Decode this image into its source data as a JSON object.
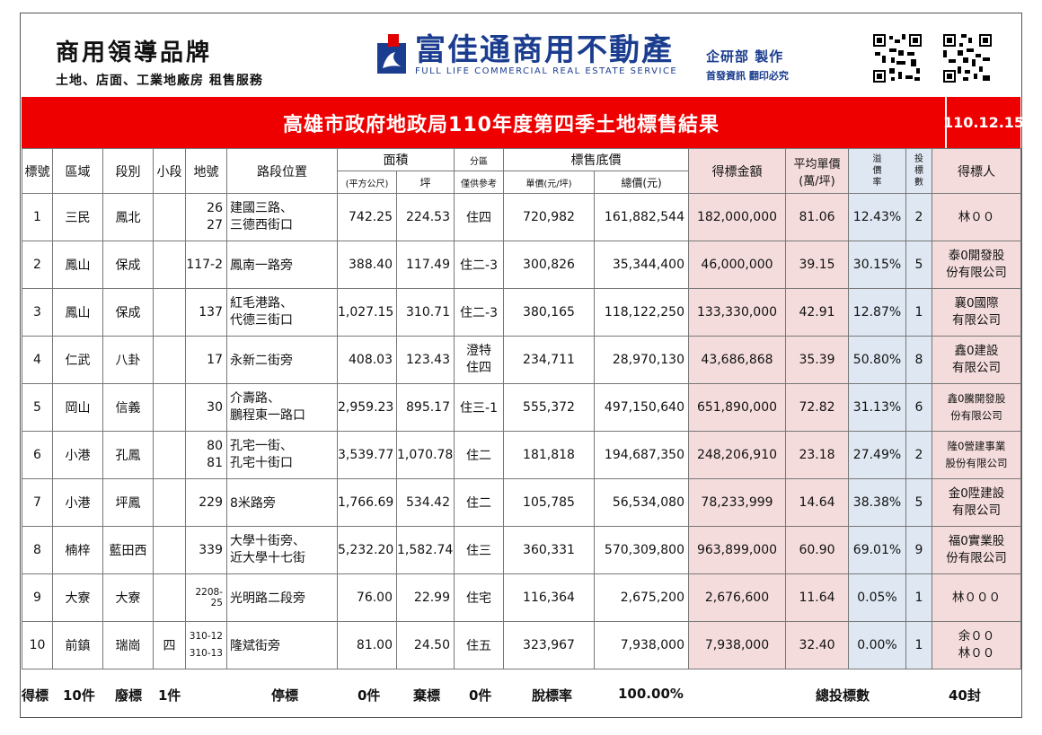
{
  "header": {
    "brand_title": "商用領導品牌",
    "brand_sub": "土地、店面、工業地廠房 租售服務",
    "logo_name": "富佳通商用不動產",
    "logo_en": "FULL LIFE COMMERCIAL REAL ESTATE SERVICE",
    "dept_title": "企研部 製作",
    "dept_sub": "首發資訊 翻印必究"
  },
  "titlebar": {
    "title": "高雄市政府地政局110年度第四季土地標售結果",
    "date": "110.12.15"
  },
  "columns": {
    "no": "標號",
    "district": "區域",
    "section": "段別",
    "subsection": "小段",
    "lot": "地號",
    "location": "路段位置",
    "area": "面積",
    "area_m2": "(平方公尺)",
    "area_ping": "坪",
    "zoning": "分區",
    "zoning_note": "僅供參考",
    "base_price": "標售底價",
    "unit_price": "單價(元/坪)",
    "total_price": "總價(元)",
    "winning_amount": "得標金額",
    "avg_unit_price": "平均單價",
    "avg_unit_price_unit": "(萬/坪)",
    "premium": [
      "溢",
      "價",
      "率"
    ],
    "bids": [
      "投",
      "標",
      "數"
    ],
    "winner": "得標人"
  },
  "rows": [
    {
      "no": "1",
      "district": "三民",
      "section": "鳳北",
      "subsection": "",
      "lot": [
        "26",
        "27"
      ],
      "location": [
        "建國三路、",
        "三德西街口"
      ],
      "area_m2": "742.25",
      "area_ping": "224.53",
      "zoning": [
        "住四"
      ],
      "unit_price": "720,982",
      "total_price": "161,882,544",
      "winning_amount": "182,000,000",
      "avg_unit_price": "81.06",
      "premium": "12.43%",
      "bids": "2",
      "winner": [
        "林００"
      ]
    },
    {
      "no": "2",
      "district": "鳳山",
      "section": "保成",
      "subsection": "",
      "lot": [
        "117-2"
      ],
      "location": [
        "鳳南一路旁"
      ],
      "area_m2": "388.40",
      "area_ping": "117.49",
      "zoning": [
        "住二-3"
      ],
      "unit_price": "300,826",
      "total_price": "35,344,400",
      "winning_amount": "46,000,000",
      "avg_unit_price": "39.15",
      "premium": "30.15%",
      "bids": "5",
      "winner": [
        "泰0開發股",
        "份有限公司"
      ]
    },
    {
      "no": "3",
      "district": "鳳山",
      "section": "保成",
      "subsection": "",
      "lot": [
        "137"
      ],
      "location": [
        "紅毛港路、",
        "代德三街口"
      ],
      "area_m2": "1,027.15",
      "area_ping": "310.71",
      "zoning": [
        "住二-3"
      ],
      "unit_price": "380,165",
      "total_price": "118,122,250",
      "winning_amount": "133,330,000",
      "avg_unit_price": "42.91",
      "premium": "12.87%",
      "bids": "1",
      "winner": [
        "襄0國際",
        "有限公司"
      ]
    },
    {
      "no": "4",
      "district": "仁武",
      "section": "八卦",
      "subsection": "",
      "lot": [
        "17"
      ],
      "location": [
        "永新二街旁"
      ],
      "area_m2": "408.03",
      "area_ping": "123.43",
      "zoning": [
        "澄特",
        "住四"
      ],
      "unit_price": "234,711",
      "total_price": "28,970,130",
      "winning_amount": "43,686,868",
      "avg_unit_price": "35.39",
      "premium": "50.80%",
      "bids": "8",
      "winner": [
        "鑫0建設",
        "有限公司"
      ]
    },
    {
      "no": "5",
      "district": "岡山",
      "section": "信義",
      "subsection": "",
      "lot": [
        "30"
      ],
      "location": [
        "介壽路、",
        "鵬程東一路口"
      ],
      "area_m2": "2,959.23",
      "area_ping": "895.17",
      "zoning": [
        "住三-1"
      ],
      "unit_price": "555,372",
      "total_price": "497,150,640",
      "winning_amount": "651,890,000",
      "avg_unit_price": "72.82",
      "premium": "31.13%",
      "bids": "6",
      "winner": [
        "鑫0騰開發股",
        "份有限公司"
      ],
      "winner_small": true
    },
    {
      "no": "6",
      "district": "小港",
      "section": "孔鳳",
      "subsection": "",
      "lot": [
        "80",
        "81"
      ],
      "location": [
        "孔宅一街、",
        "孔宅十街口"
      ],
      "area_m2": "3,539.77",
      "area_ping": "1,070.78",
      "zoning": [
        "住二"
      ],
      "unit_price": "181,818",
      "total_price": "194,687,350",
      "winning_amount": "248,206,910",
      "avg_unit_price": "23.18",
      "premium": "27.49%",
      "bids": "2",
      "winner": [
        "隆0營建事業",
        "股份有限公司"
      ],
      "winner_small": true
    },
    {
      "no": "7",
      "district": "小港",
      "section": "坪鳳",
      "subsection": "",
      "lot": [
        "229"
      ],
      "location": [
        "8米路旁"
      ],
      "area_m2": "1,766.69",
      "area_ping": "534.42",
      "zoning": [
        "住二"
      ],
      "unit_price": "105,785",
      "total_price": "56,534,080",
      "winning_amount": "78,233,999",
      "avg_unit_price": "14.64",
      "premium": "38.38%",
      "bids": "5",
      "winner": [
        "金0陞建設",
        "有限公司"
      ]
    },
    {
      "no": "8",
      "district": "楠梓",
      "section": "藍田西",
      "subsection": "",
      "lot": [
        "339"
      ],
      "location": [
        "大學十街旁、",
        "近大學十七街"
      ],
      "area_m2": "5,232.20",
      "area_ping": "1,582.74",
      "zoning": [
        "住三"
      ],
      "unit_price": "360,331",
      "total_price": "570,309,800",
      "winning_amount": "963,899,000",
      "avg_unit_price": "60.90",
      "premium": "69.01%",
      "bids": "9",
      "winner": [
        "福0實業股",
        "份有限公司"
      ]
    },
    {
      "no": "9",
      "district": "大寮",
      "section": "大寮",
      "subsection": "",
      "lot": [
        "2208-25"
      ],
      "lot_tiny": true,
      "location": [
        "光明路二段旁"
      ],
      "area_m2": "76.00",
      "area_ping": "22.99",
      "zoning": [
        "住宅"
      ],
      "unit_price": "116,364",
      "total_price": "2,675,200",
      "winning_amount": "2,676,600",
      "avg_unit_price": "11.64",
      "premium": "0.05%",
      "bids": "1",
      "winner": [
        "林０００"
      ]
    },
    {
      "no": "10",
      "district": "前鎮",
      "section": "瑞崗",
      "subsection": "四",
      "lot": [
        "310-12",
        "310-13"
      ],
      "lot_tiny": true,
      "location": [
        "隆斌街旁"
      ],
      "area_m2": "81.00",
      "area_ping": "24.50",
      "zoning": [
        "住五"
      ],
      "unit_price": "323,967",
      "total_price": "7,938,000",
      "winning_amount": "7,938,000",
      "avg_unit_price": "32.40",
      "premium": "0.00%",
      "bids": "1",
      "winner": [
        "余００",
        "林００"
      ]
    }
  ],
  "footer": {
    "won_label": "得標",
    "won_value": "10件",
    "void_label": "廢標",
    "void_value": "1件",
    "stopped_label": "停標",
    "stopped_value": "0件",
    "abandoned_label": "棄標",
    "abandoned_value": "0件",
    "rate_label": "脫標率",
    "rate_value": "100.00%",
    "total_bids_label": "總投標數",
    "total_bids_value": "40封"
  }
}
